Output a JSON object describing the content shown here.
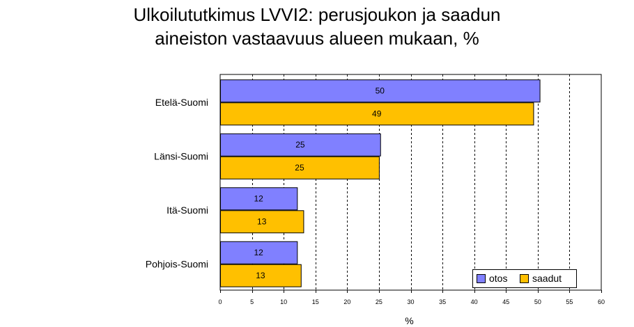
{
  "chart_data": {
    "type": "bar",
    "orientation": "horizontal",
    "title_line1": "Ulkoilututkimus LVVI2: perusjoukon ja saadun",
    "title_line2": "aineiston vastaavuus alueen mukaan, %",
    "categories": [
      "Etelä-Suomi",
      "Länsi-Suomi",
      "Itä-Suomi",
      "Pohjois-Suomi"
    ],
    "series": [
      {
        "name": "otos",
        "values": [
          50.3,
          25.2,
          12.1,
          12.1
        ],
        "labels": [
          "50",
          "25",
          "12",
          "12"
        ],
        "color": "#8080ff"
      },
      {
        "name": "saadut",
        "values": [
          49.3,
          25.0,
          13.1,
          12.7
        ],
        "labels": [
          "49",
          "25",
          "13",
          "13"
        ],
        "color": "#ffc000"
      }
    ],
    "xlabel": "%",
    "xlim": [
      0,
      60
    ],
    "xticks": [
      0,
      5,
      10,
      15,
      20,
      25,
      30,
      35,
      40,
      45,
      50,
      55,
      60
    ],
    "grid": "vertical dashed",
    "legend_position": "bottom-right"
  }
}
